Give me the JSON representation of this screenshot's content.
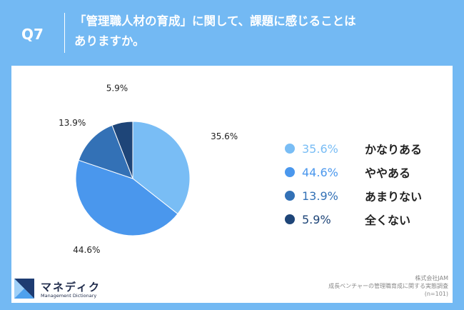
{
  "header": {
    "question_number": "Q7",
    "question_line1": "「管理職人材の育成」に関して、課題に感じることは",
    "question_line2": "ありますか。"
  },
  "chart_data": {
    "type": "pie",
    "categories": [
      "かなりある",
      "ややある",
      "あまりない",
      "全くない"
    ],
    "values": [
      35.6,
      44.6,
      13.9,
      5.9
    ],
    "value_labels": [
      "35.6%",
      "44.6%",
      "13.9%",
      "5.9%"
    ],
    "colors": [
      "#79bdf5",
      "#4a97ed",
      "#3371b6",
      "#1e4578"
    ],
    "start_angle_deg": 0,
    "direction": "clockwise",
    "legend_position": "right"
  },
  "brand": {
    "name": "マネディク",
    "subtitle": "Management Dictionary"
  },
  "footnote": {
    "line1": "株式会社JAM",
    "line2": "成長ベンチャーの管理職育成に関する実態調査",
    "line3": "(n=101)"
  }
}
